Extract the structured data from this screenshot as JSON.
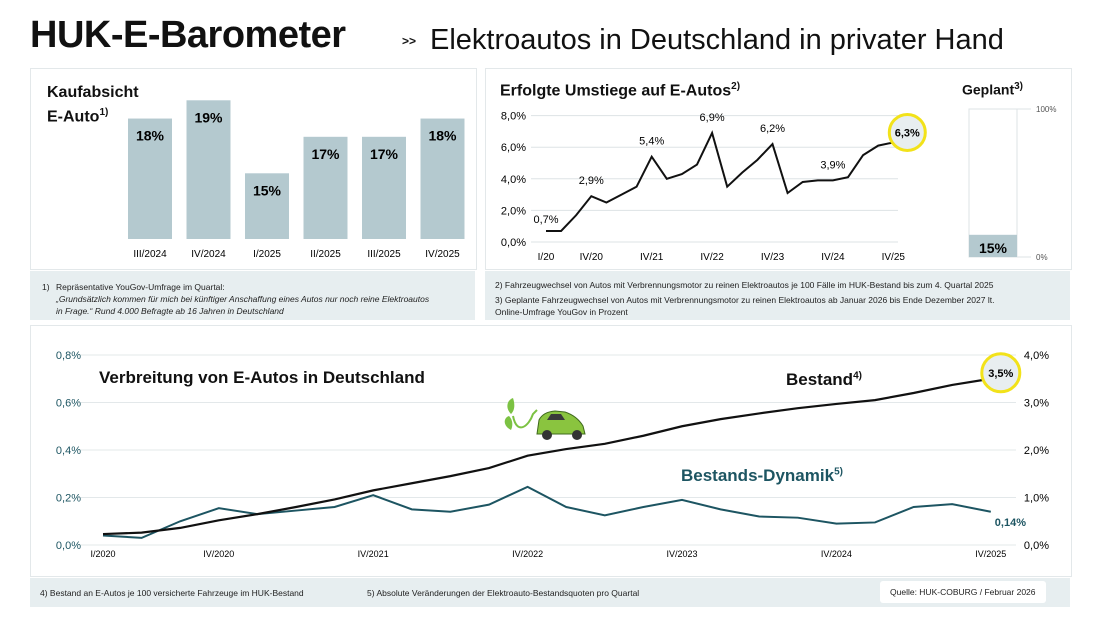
{
  "header": {
    "title": "HUK-E-Barometer",
    "separator": ">>",
    "subtitle": "Elektroautos in Deutschland in privater Hand"
  },
  "colors": {
    "bar": "#b4c9cf",
    "teal": "#1d5562",
    "highlight": "#f2e21a",
    "footbg": "#e7eef0"
  },
  "chart_data": [
    {
      "type": "bar",
      "title": "Kaufabsicht E-Auto",
      "title_line1": "Kaufabsicht",
      "title_line2": "E-Auto",
      "title_sup": "1)",
      "categories": [
        "III/2024",
        "IV/2024",
        "I/2025",
        "II/2025",
        "III/2025",
        "IV/2025"
      ],
      "values": [
        18,
        19,
        15,
        17,
        17,
        18
      ],
      "labels": [
        "18%",
        "19%",
        "15%",
        "17%",
        "17%",
        "18%"
      ],
      "unit": "%"
    },
    {
      "type": "line",
      "title": "Erfolgte Umstiege auf E-Autos",
      "title_sup": "2)",
      "ylim": [
        0,
        8
      ],
      "yticks": [
        "0,0%",
        "2,0%",
        "4,0%",
        "6,0%",
        "8,0%"
      ],
      "xticks": [
        "I/20",
        "IV/20",
        "IV/21",
        "IV/22",
        "IV/23",
        "IV/24",
        "IV/25"
      ],
      "values": [
        0.7,
        0.7,
        1.7,
        2.9,
        2.5,
        3.0,
        3.5,
        5.4,
        4.0,
        4.3,
        4.9,
        6.9,
        3.5,
        4.4,
        5.2,
        6.2,
        3.1,
        3.8,
        3.9,
        3.9,
        4.1,
        5.5,
        6.1,
        6.3
      ],
      "annotations": [
        "0,7%",
        "2,9%",
        "5,4%",
        "6,9%",
        "6,2%",
        "3,9%",
        "6,3%"
      ]
    },
    {
      "type": "bar",
      "title": "Geplant",
      "title_sup": "3)",
      "value": 15,
      "label": "15%",
      "ylim": [
        0,
        100
      ],
      "yticks": [
        "0%",
        "100%"
      ]
    },
    {
      "type": "line",
      "title": "Verbreitung von E-Autos in Deutschland",
      "left_yticks": [
        "0,0%",
        "0,2%",
        "0,4%",
        "0,6%",
        "0,8%"
      ],
      "left_ylim": [
        0,
        0.8
      ],
      "right_yticks": [
        "0,0%",
        "1,0%",
        "2,0%",
        "3,0%",
        "4,0%"
      ],
      "right_ylim": [
        0,
        4
      ],
      "xticks": [
        "I/2020",
        "IV/2020",
        "IV/2021",
        "IV/2022",
        "IV/2023",
        "IV/2024",
        "IV/2025"
      ],
      "series": [
        {
          "name": "Bestand",
          "sup": "4)",
          "axis": "right",
          "values": [
            0.23,
            0.26,
            0.36,
            0.52,
            0.65,
            0.8,
            0.96,
            1.15,
            1.3,
            1.45,
            1.62,
            1.88,
            2.02,
            2.13,
            2.3,
            2.5,
            2.65,
            2.77,
            2.88,
            2.97,
            3.05,
            3.2,
            3.37,
            3.5
          ],
          "end_label": "3,5%"
        },
        {
          "name": "Bestands-Dynamik",
          "sup": "5)",
          "axis": "left",
          "values": [
            0.04,
            0.03,
            0.1,
            0.155,
            0.13,
            0.145,
            0.16,
            0.21,
            0.15,
            0.14,
            0.17,
            0.245,
            0.16,
            0.125,
            0.16,
            0.19,
            0.15,
            0.12,
            0.115,
            0.09,
            0.095,
            0.16,
            0.172,
            0.14
          ],
          "end_label": "0,14%"
        }
      ]
    }
  ],
  "footnotes": {
    "f1_num": "1)",
    "f1_a": "Repräsentative YouGov-Umfrage im Quartal:",
    "f1_b": "„Grundsätzlich kommen für mich bei künftiger Anschaffung eines Autos nur noch reine Elektroautos in Frage.“ Rund 4.000 Befragte ab 16 Jahren in Deutschland",
    "f2": "2)  Fahrzeugwechsel von Autos mit Verbrennungsmotor zu reinen Elektroautos je 100 Fälle im HUK-Bestand bis zum 4. Quartal 2025",
    "f3": "3)  Geplante Fahrzeugwechsel von Autos mit Verbrennungsmotor zu reinen Elektroautos ab Januar 2026 bis Ende Dezember 2027 lt. Online-Umfrage YouGov in Prozent",
    "f4": "4) Bestand an E-Autos je 100 versicherte Fahrzeuge im HUK-Bestand",
    "f5": "5) Absolute Veränderungen der Elektroauto-Bestandsquoten pro Quartal",
    "source": "Quelle: HUK-COBURG / Februar  2026"
  }
}
